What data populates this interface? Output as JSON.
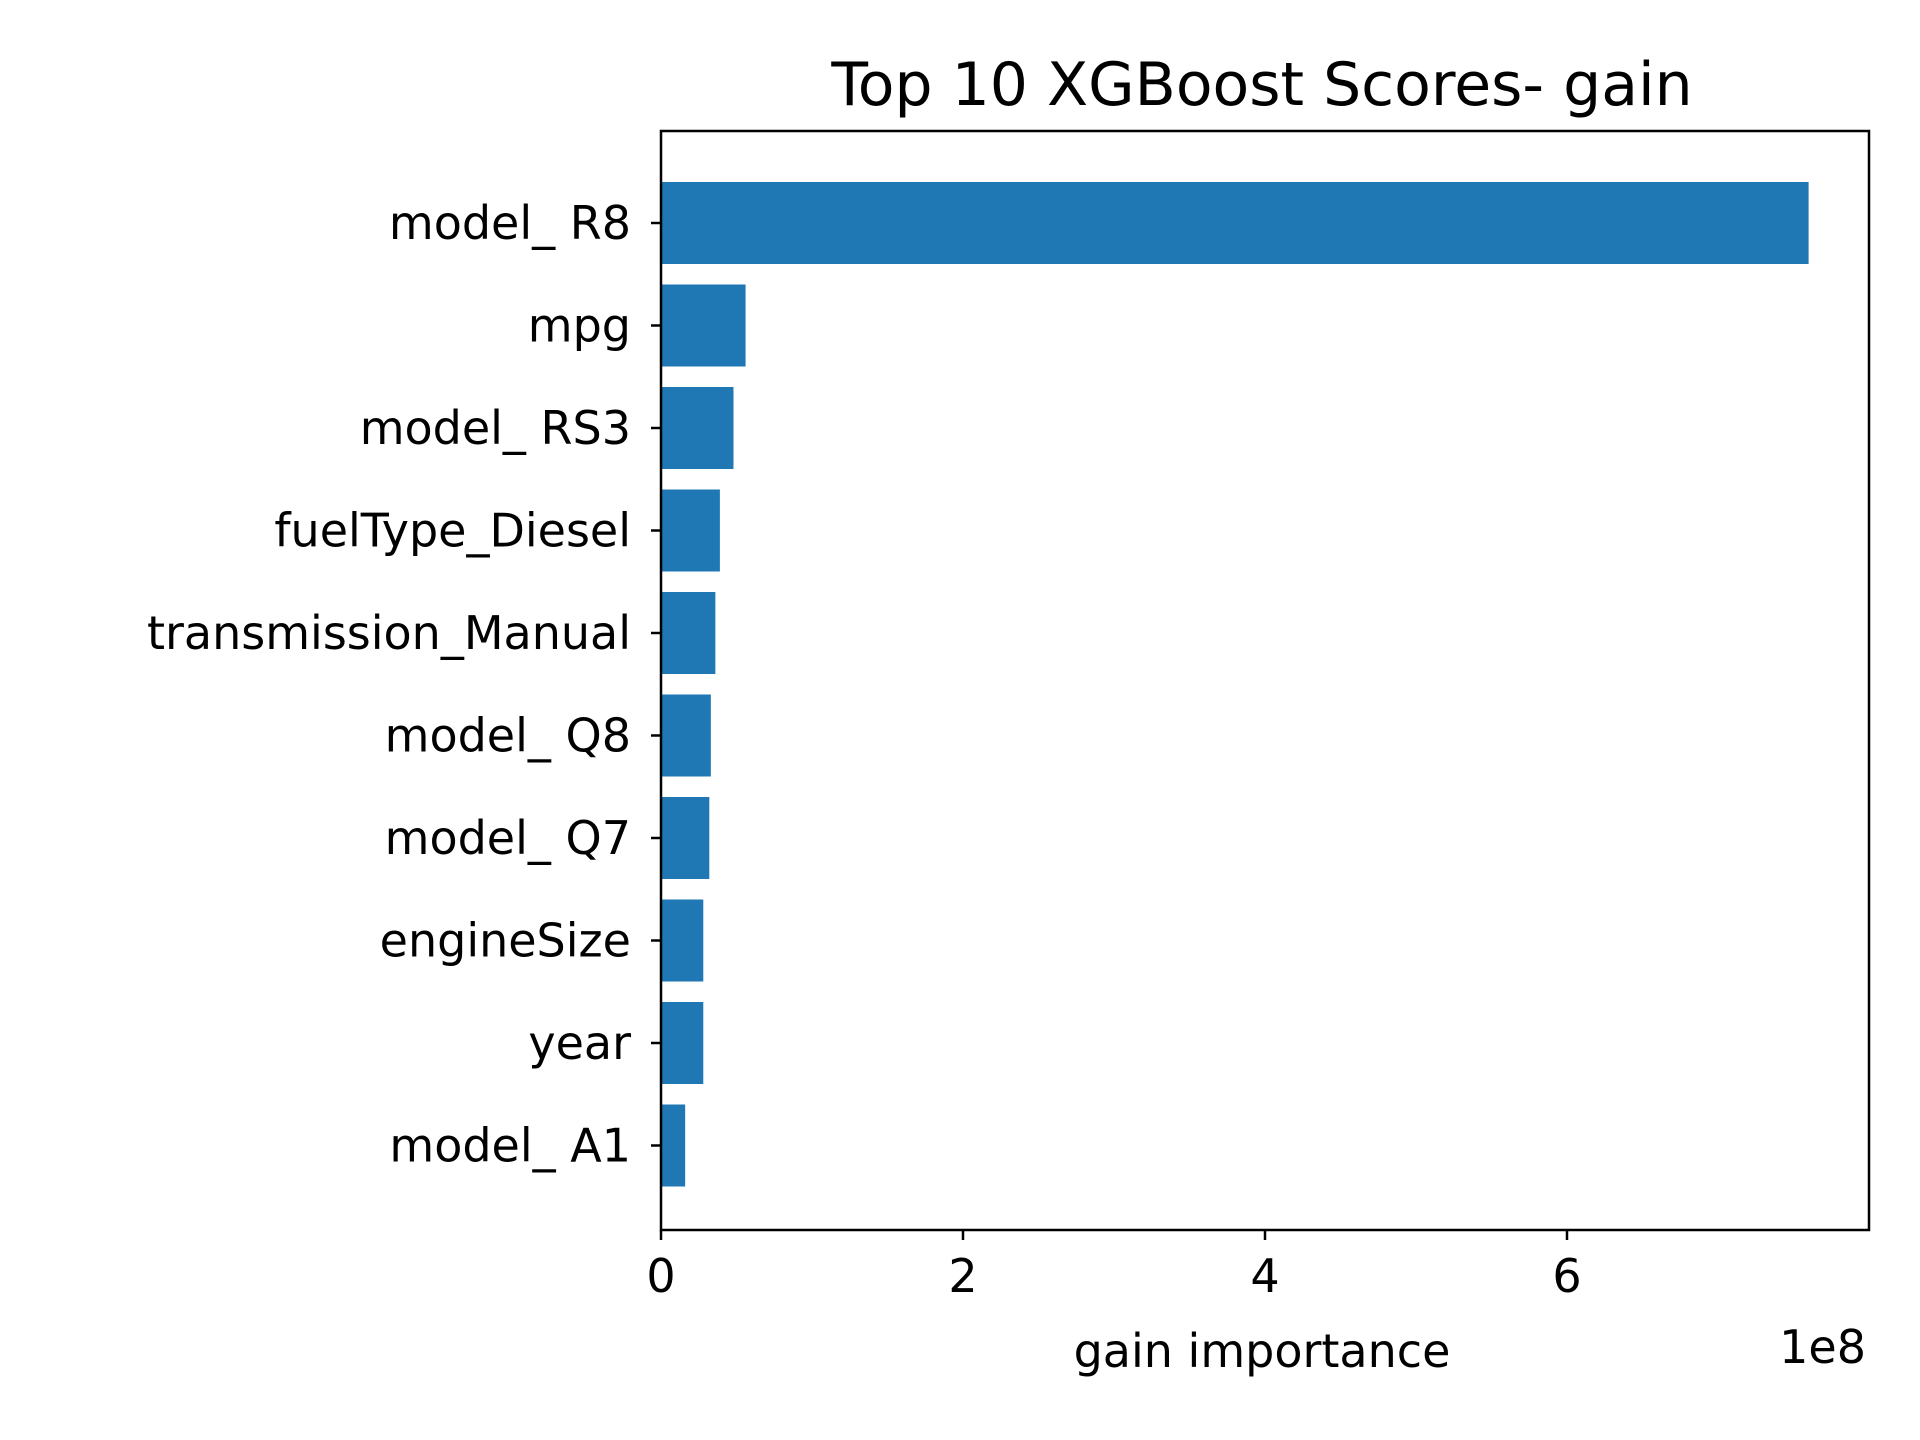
{
  "chart_data": {
    "type": "bar",
    "orientation": "horizontal",
    "title": "Top 10 XGBoost Scores- gain",
    "xlabel": "gain importance",
    "ylabel": "",
    "offset_text": "1e8",
    "scale": 100000000,
    "xlim": [
      0,
      8.0
    ],
    "xticks": [
      0,
      2,
      4,
      6
    ],
    "xtick_labels": [
      "0",
      "2",
      "4",
      "6"
    ],
    "color": "#1f77b4",
    "categories": [
      "model_ R8",
      "mpg",
      "model_ RS3",
      "fuelType_Diesel",
      "transmission_Manual",
      "model_ Q8",
      "model_ Q7",
      "engineSize",
      "year",
      "model_ A1"
    ],
    "values": [
      7.6,
      0.56,
      0.48,
      0.39,
      0.36,
      0.33,
      0.32,
      0.28,
      0.28,
      0.16
    ]
  }
}
